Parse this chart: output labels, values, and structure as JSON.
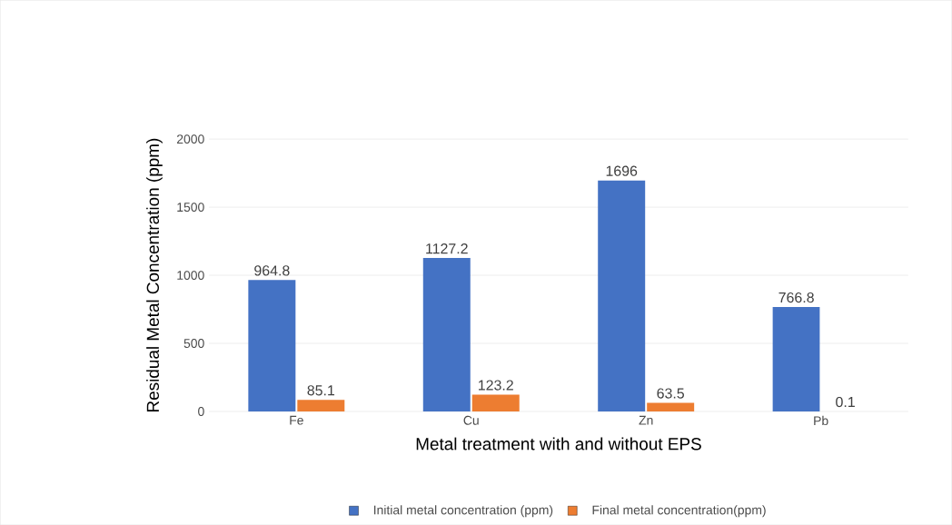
{
  "chart_data": {
    "type": "bar",
    "xlabel": "Metal treatment with and without EPS",
    "ylabel": "Residual Metal Concentration (ppm)",
    "categories": [
      "Fe",
      "Cu",
      "Zn",
      "Pb"
    ],
    "series": [
      {
        "name": "Initial metal concentration (ppm)",
        "color": "#4472c4",
        "values": [
          964.8,
          1127.2,
          1696,
          766.8
        ]
      },
      {
        "name": "Final metal concentration(ppm)",
        "color": "#ed7d31",
        "values": [
          85.1,
          123.2,
          63.5,
          0.1
        ]
      }
    ],
    "ylim": [
      0,
      2000
    ],
    "yticks": [
      0,
      500,
      1000,
      1500,
      2000
    ],
    "grid": "y",
    "legend": "bottom",
    "data_labels": true
  }
}
